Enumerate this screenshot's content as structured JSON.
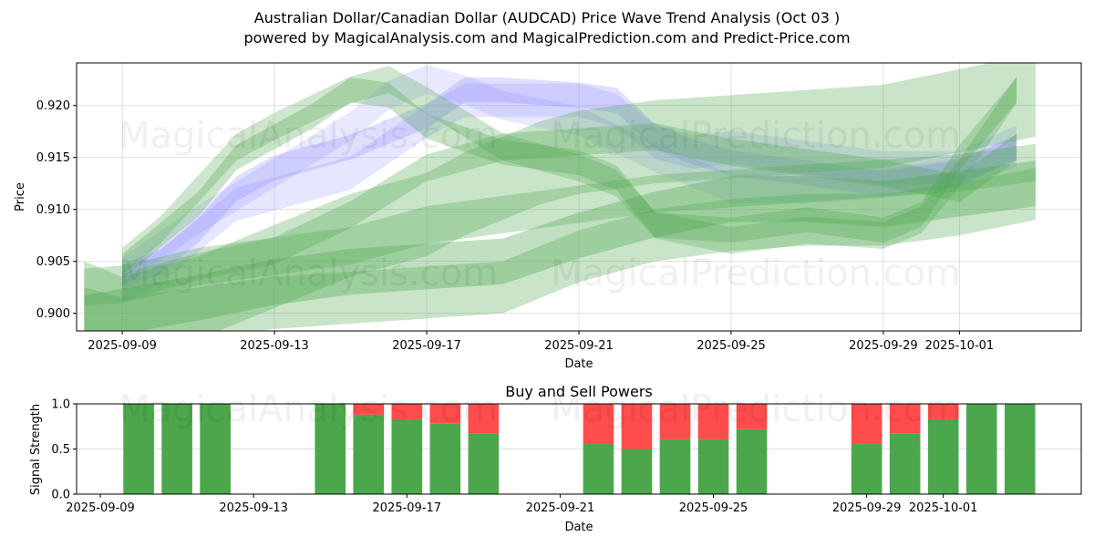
{
  "header": {
    "title": "Australian Dollar/Canadian Dollar (AUDCAD) Price Wave Trend Analysis (Oct 03 )",
    "subtitle": "powered by MagicalAnalysis.com and MagicalPrediction.com and Predict-Price.com"
  },
  "watermarks": [
    "MagicalAnalysis.com",
    "MagicalPrediction.com"
  ],
  "colors": {
    "buy": "#4ca64c",
    "sell": "#ff4c4c",
    "band_green": "#4ca64c",
    "band_blue": "#8080ff",
    "grid": "#e0e0e0"
  },
  "chart_data": [
    {
      "type": "area",
      "title": "",
      "xlabel": "Date",
      "ylabel": "Price",
      "xlim": [
        "2025-09-07.8",
        "2025-10-04.2"
      ],
      "xlim_days_from_2025_09_09": [
        -1.2,
        25.2
      ],
      "ylim": [
        0.8983,
        0.9241
      ],
      "grid": true,
      "x_ticks": [
        "2025-09-09",
        "2025-09-13",
        "2025-09-17",
        "2025-09-21",
        "2025-09-25",
        "2025-09-29",
        "2025-10-01"
      ],
      "x_ticks_days": [
        0,
        4,
        8,
        12,
        16,
        20,
        22
      ],
      "y_ticks": [
        "0.900",
        "0.905",
        "0.910",
        "0.915",
        "0.920"
      ],
      "y_ticks_values": [
        0.9,
        0.905,
        0.91,
        0.915,
        0.92
      ],
      "bands": [
        {
          "color": "blue",
          "opacity": 0.25,
          "x": [
            0,
            1,
            2,
            3,
            4,
            6,
            8,
            9,
            10,
            12,
            13,
            14,
            15,
            16,
            18,
            20,
            22,
            23.5
          ],
          "y": [
            0.9035,
            0.905,
            0.908,
            0.912,
            0.914,
            0.916,
            0.919,
            0.9215,
            0.9215,
            0.921,
            0.9205,
            0.917,
            0.9155,
            0.9145,
            0.9135,
            0.9125,
            0.9135,
            0.916
          ],
          "half_width": 0.0012
        },
        {
          "color": "blue",
          "opacity": 0.2,
          "x": [
            0,
            1,
            2,
            3,
            4,
            6,
            8,
            9,
            10,
            12,
            13,
            14,
            15,
            16,
            18,
            20,
            22,
            23.5
          ],
          "y": [
            0.9025,
            0.9045,
            0.9075,
            0.9105,
            0.9115,
            0.9135,
            0.9185,
            0.9205,
            0.9205,
            0.9205,
            0.9195,
            0.9165,
            0.9155,
            0.916,
            0.915,
            0.914,
            0.914,
            0.9165
          ],
          "half_width": 0.0016
        },
        {
          "color": "blue",
          "opacity": 0.18,
          "x": [
            0,
            2,
            4,
            6,
            7,
            8,
            9,
            10,
            12,
            14,
            16,
            18,
            20,
            22,
            23.5
          ],
          "y": [
            0.904,
            0.909,
            0.9135,
            0.918,
            0.921,
            0.9225,
            0.9215,
            0.92,
            0.9185,
            0.915,
            0.912,
            0.912,
            0.9125,
            0.9135,
            0.9155
          ],
          "half_width": 0.0014
        },
        {
          "color": "green",
          "opacity": 0.3,
          "x": [
            0,
            1,
            2,
            3,
            4,
            5,
            6,
            7,
            8,
            10,
            12,
            13,
            14,
            16,
            18,
            20,
            21,
            22,
            23.5
          ],
          "y": [
            0.9045,
            0.9075,
            0.9105,
            0.915,
            0.917,
            0.919,
            0.9215,
            0.921,
            0.918,
            0.9155,
            0.9145,
            0.913,
            0.9085,
            0.908,
            0.909,
            0.908,
            0.9095,
            0.915,
            0.9215
          ],
          "half_width": 0.0012
        },
        {
          "color": "green",
          "opacity": 0.28,
          "x": [
            0,
            1,
            2,
            3,
            4,
            6,
            7,
            8,
            10,
            12,
            13,
            14,
            16,
            18,
            20,
            21,
            22,
            23.5
          ],
          "y": [
            0.905,
            0.908,
            0.912,
            0.916,
            0.918,
            0.9215,
            0.9225,
            0.9205,
            0.916,
            0.914,
            0.9125,
            0.9085,
            0.907,
            0.908,
            0.9075,
            0.909,
            0.9135,
            0.9215
          ],
          "half_width": 0.0013
        },
        {
          "color": "green",
          "opacity": 0.3,
          "x": [
            0,
            2,
            4,
            6,
            8,
            10,
            12,
            14,
            16,
            18,
            20,
            22,
            23.5
          ],
          "y": [
            0.9025,
            0.9045,
            0.906,
            0.9095,
            0.914,
            0.916,
            0.9165,
            0.917,
            0.9155,
            0.9145,
            0.9135,
            0.912,
            0.916
          ],
          "half_width": 0.0013
        },
        {
          "color": "green",
          "opacity": 0.3,
          "x": [
            -1,
            0,
            2,
            4,
            6,
            8,
            10,
            12,
            14,
            16,
            18,
            20,
            22,
            24
          ],
          "y": [
            0.9025,
            0.9028,
            0.9045,
            0.9055,
            0.9065,
            0.9085,
            0.9095,
            0.9105,
            0.9115,
            0.912,
            0.9125,
            0.913,
            0.9135,
            0.9145
          ],
          "half_width": 0.0018
        },
        {
          "color": "green",
          "opacity": 0.35,
          "x": [
            -1,
            0,
            2,
            4,
            6,
            8,
            10,
            12,
            14,
            16,
            18,
            20,
            22,
            24
          ],
          "y": [
            0.8995,
            0.9002,
            0.9015,
            0.903,
            0.904,
            0.9045,
            0.905,
            0.9075,
            0.9095,
            0.911,
            0.911,
            0.9105,
            0.9115,
            0.9125
          ],
          "half_width": 0.0022
        },
        {
          "color": "green",
          "opacity": 0.3,
          "x": [
            -1,
            0,
            2,
            4,
            6,
            8,
            10,
            12,
            14,
            16,
            18,
            20,
            22,
            24
          ],
          "y": [
            0.9,
            0.899,
            0.9,
            0.901,
            0.9015,
            0.902,
            0.9025,
            0.9055,
            0.9075,
            0.9085,
            0.909,
            0.909,
            0.91,
            0.9115
          ],
          "half_width": 0.0025
        },
        {
          "color": "green",
          "opacity": 0.3,
          "x": [
            -1,
            0,
            2,
            4,
            6,
            8,
            9,
            10,
            11,
            12,
            14,
            16,
            18,
            20,
            22,
            24
          ],
          "y": [
            0.901,
            0.8995,
            0.9015,
            0.9045,
            0.9075,
            0.9095,
            0.9115,
            0.913,
            0.9145,
            0.9155,
            0.9165,
            0.917,
            0.9175,
            0.918,
            0.9195,
            0.921
          ],
          "half_width": 0.004
        }
      ]
    },
    {
      "type": "bar",
      "title": "Buy and Sell Powers",
      "xlabel": "Date",
      "ylabel": "Signal Strength",
      "xlim_days_from_2025_09_09": [
        -0.62,
        25.6
      ],
      "ylim": [
        0.0,
        1.0
      ],
      "grid": true,
      "x_ticks": [
        "2025-09-09",
        "2025-09-13",
        "2025-09-17",
        "2025-09-21",
        "2025-09-25",
        "2025-09-29",
        "2025-10-01"
      ],
      "x_ticks_days": [
        0,
        4,
        8,
        12,
        16,
        20,
        22
      ],
      "y_ticks": [
        "0.0",
        "0.5",
        "1.0"
      ],
      "y_ticks_values": [
        0.0,
        0.5,
        1.0
      ],
      "categories": [
        "2025-09-10",
        "2025-09-11",
        "2025-09-12",
        "2025-09-15",
        "2025-09-16",
        "2025-09-17",
        "2025-09-18",
        "2025-09-19",
        "2025-09-22",
        "2025-09-23",
        "2025-09-24",
        "2025-09-25",
        "2025-09-26",
        "2025-09-29",
        "2025-09-30",
        "2025-10-01",
        "2025-10-02",
        "2025-10-03"
      ],
      "category_days": [
        1,
        2,
        3,
        6,
        7,
        8,
        9,
        10,
        13,
        14,
        15,
        16,
        17,
        20,
        21,
        22,
        23,
        24
      ],
      "series": [
        {
          "name": "Buy",
          "values": [
            1.0,
            1.0,
            1.0,
            1.0,
            0.88,
            0.83,
            0.78,
            0.67,
            0.56,
            0.5,
            0.61,
            0.61,
            0.72,
            0.56,
            0.67,
            0.83,
            1.0,
            1.0
          ]
        },
        {
          "name": "Sell",
          "values": [
            0.0,
            0.0,
            0.0,
            0.0,
            0.12,
            0.17,
            0.22,
            0.33,
            0.44,
            0.5,
            0.39,
            0.39,
            0.28,
            0.44,
            0.33,
            0.17,
            0.0,
            0.0
          ]
        }
      ]
    }
  ]
}
